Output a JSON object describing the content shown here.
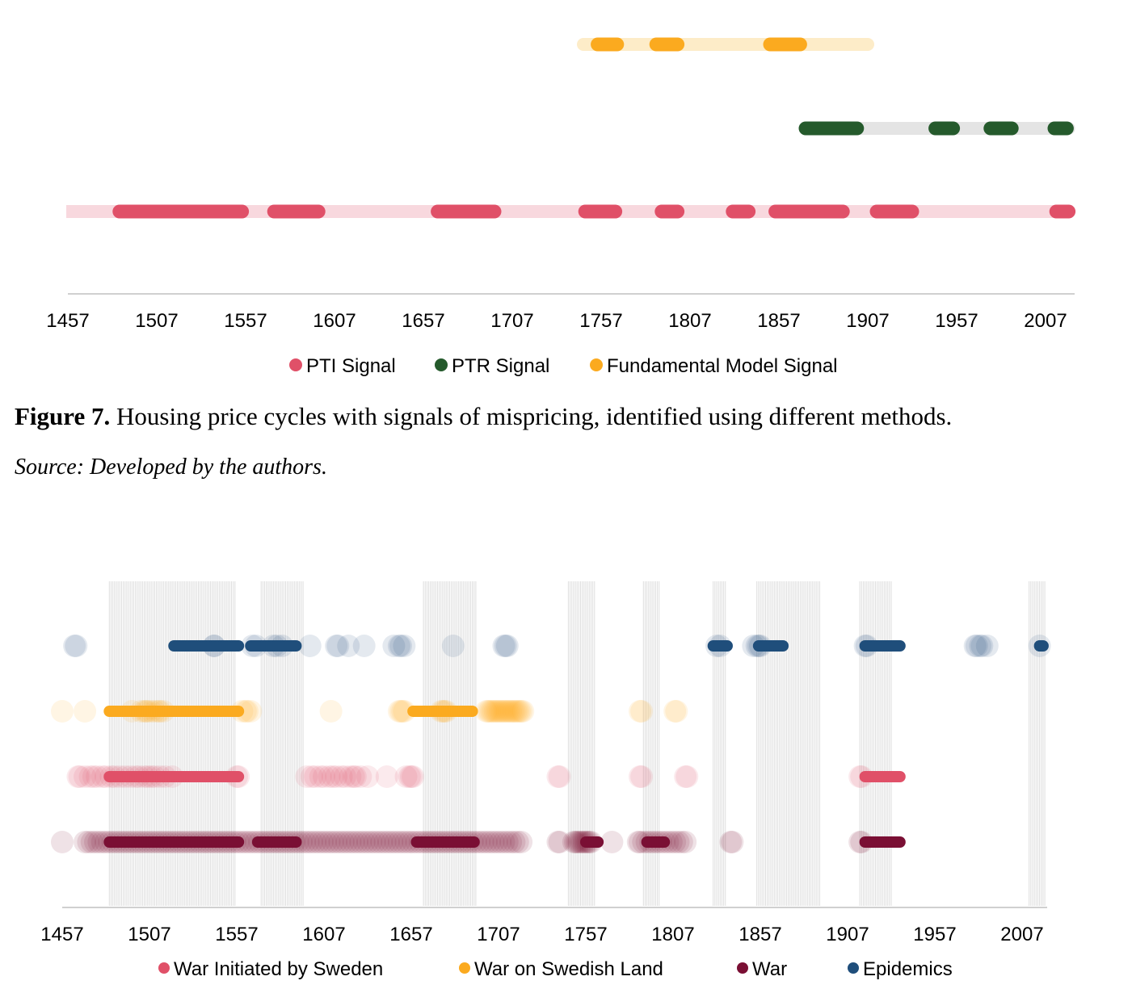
{
  "figure_caption": {
    "label": "Figure 7.",
    "text": " Housing price cycles with signals of mispricing, identified using different methods."
  },
  "source_note": "Source: Developed by the authors.",
  "colors": {
    "pti": "#e05068",
    "pti_track": "#f8d8de",
    "ptr": "#255a2c",
    "ptr_track": "#e4e4e4",
    "fundamental": "#fbaa1f",
    "fundamental_track": "#fdecc8",
    "war_sweden": "#e05068",
    "war_swedish_land": "#fbaa1f",
    "war": "#7a0f34",
    "epidemics": "#1f4e7b"
  },
  "chart_data": [
    {
      "type": "timeline",
      "x_ticks": [
        "1457",
        "1507",
        "1557",
        "1607",
        "1657",
        "1707",
        "1757",
        "1807",
        "1857",
        "1907",
        "1957",
        "2007"
      ],
      "xlim": [
        1457,
        2021
      ],
      "legend_position": "bottom-center",
      "legend": [
        "PTI Signal",
        "PTR Signal",
        "Fundamental Model Signal"
      ],
      "series": [
        {
          "name": "Fundamental Model Signal",
          "track": [
            1747,
            1907
          ],
          "periods": [
            [
              1755,
              1766
            ],
            [
              1788,
              1800
            ],
            [
              1852,
              1869
            ]
          ]
        },
        {
          "name": "PTR Signal",
          "track": [
            1872,
            2020
          ],
          "periods": [
            [
              1872,
              1901
            ],
            [
              1945,
              1955
            ],
            [
              1976,
              1988
            ],
            [
              2012,
              2019
            ]
          ]
        },
        {
          "name": "PTI Signal",
          "track": [
            1457,
            2021
          ],
          "periods": [
            [
              1486,
              1555
            ],
            [
              1573,
              1598
            ],
            [
              1665,
              1697
            ],
            [
              1748,
              1765
            ],
            [
              1791,
              1800
            ],
            [
              1831,
              1840
            ],
            [
              1855,
              1893
            ],
            [
              1912,
              1932
            ],
            [
              2013,
              2020
            ]
          ]
        }
      ]
    },
    {
      "type": "scatter_timeline",
      "x_ticks": [
        "1457",
        "1507",
        "1557",
        "1607",
        "1657",
        "1707",
        "1757",
        "1807",
        "1857",
        "1907",
        "1957",
        "2007"
      ],
      "xlim": [
        1457,
        2021
      ],
      "legend_position": "bottom-center",
      "legend": [
        "War Initiated by Sweden",
        "War on Swedish Land",
        "War",
        "Epidemics"
      ],
      "series": [
        {
          "name": "Epidemics",
          "dots": [
            1464,
            1465,
            1544,
            1544,
            1566,
            1568,
            1578,
            1580,
            1583,
            1599,
            1614,
            1615,
            1621,
            1630,
            1647,
            1650,
            1651,
            1653,
            1681,
            1710,
            1711,
            1712,
            1832,
            1834,
            1853,
            1855,
            1856,
            1857,
            1917,
            1918,
            1980,
            1981,
            1983,
            1984,
            1987,
            2017
          ],
          "bars": [
            [
              1521,
              1558
            ],
            [
              1565,
              1591
            ],
            [
              1830,
              1838
            ],
            [
              1856,
              1870
            ],
            [
              1917,
              1937
            ],
            [
              2017,
              2019
            ]
          ]
        },
        {
          "name": "War on Swedish Land",
          "dots": [
            1457,
            1470,
            1497,
            1502,
            1504,
            1505,
            1506,
            1508,
            1510,
            1512,
            1513,
            1515,
            1560,
            1562,
            1563,
            1565,
            1611,
            1650,
            1651,
            1652,
            1653,
            1674,
            1675,
            1676,
            1677,
            1700,
            1701,
            1702,
            1703,
            1704,
            1705,
            1706,
            1707,
            1708,
            1709,
            1710,
            1711,
            1712,
            1713,
            1714,
            1715,
            1716,
            1717,
            1718,
            1719,
            1720,
            1721,
            1788,
            1789,
            1808,
            1809
          ],
          "bars": [
            [
              1484,
              1558
            ],
            [
              1658,
              1692
            ]
          ]
        },
        {
          "name": "War Initiated by Sweden",
          "dots": [
            1466,
            1467,
            1470,
            1473,
            1475,
            1477,
            1480,
            1482,
            1485,
            1487,
            1490,
            1493,
            1496,
            1499,
            1501,
            1504,
            1506,
            1508,
            1510,
            1513,
            1516,
            1520,
            1557,
            1558,
            1597,
            1600,
            1602,
            1605,
            1607,
            1610,
            1612,
            1614,
            1617,
            1619,
            1622,
            1624,
            1625,
            1628,
            1632,
            1643,
            1654,
            1656,
            1657,
            1658,
            1741,
            1742,
            1788,
            1789,
            1814,
            1815,
            1914,
            1915
          ],
          "bars": [
            [
              1484,
              1558
            ],
            [
              1917,
              1937
            ]
          ]
        },
        {
          "name": "War",
          "dots": [
            1457,
            1470,
            1472,
            1474,
            1476,
            1478,
            1480,
            1482,
            1484,
            1486,
            1488,
            1490,
            1492,
            1494,
            1496,
            1498,
            1500,
            1502,
            1504,
            1506,
            1508,
            1510,
            1512,
            1514,
            1516,
            1518,
            1520,
            1522,
            1524,
            1526,
            1528,
            1530,
            1532,
            1534,
            1536,
            1538,
            1540,
            1542,
            1544,
            1546,
            1548,
            1550,
            1552,
            1554,
            1556,
            1558,
            1560,
            1562,
            1564,
            1566,
            1568,
            1570,
            1572,
            1574,
            1576,
            1578,
            1580,
            1582,
            1584,
            1586,
            1588,
            1590,
            1592,
            1594,
            1596,
            1598,
            1600,
            1602,
            1604,
            1606,
            1608,
            1610,
            1612,
            1614,
            1616,
            1618,
            1620,
            1622,
            1624,
            1626,
            1628,
            1630,
            1632,
            1634,
            1636,
            1638,
            1640,
            1642,
            1644,
            1646,
            1648,
            1650,
            1652,
            1654,
            1656,
            1658,
            1660,
            1662,
            1664,
            1666,
            1668,
            1670,
            1672,
            1674,
            1676,
            1678,
            1680,
            1682,
            1684,
            1686,
            1688,
            1690,
            1692,
            1694,
            1696,
            1698,
            1700,
            1702,
            1704,
            1706,
            1708,
            1710,
            1712,
            1714,
            1716,
            1718,
            1720,
            1741,
            1742,
            1750,
            1751,
            1752,
            1753,
            1754,
            1755,
            1756,
            1757,
            1758,
            1759,
            1760,
            1772,
            1787,
            1788,
            1790,
            1792,
            1794,
            1796,
            1798,
            1800,
            1802,
            1804,
            1806,
            1808,
            1810,
            1812,
            1814,
            1840,
            1841,
            1914,
            1915
          ],
          "bars": [
            [
              1484,
              1558
            ],
            [
              1569,
              1591
            ],
            [
              1660,
              1693
            ],
            [
              1757,
              1764
            ],
            [
              1792,
              1802
            ],
            [
              1917,
              1937
            ]
          ]
        }
      ],
      "gray_bands": [
        [
          1484,
          1556
        ],
        [
          1571,
          1595
        ],
        [
          1664,
          1694
        ],
        [
          1747,
          1762
        ],
        [
          1790,
          1799
        ],
        [
          1830,
          1837
        ],
        [
          1855,
          1891
        ],
        [
          1914,
          1932
        ],
        [
          2011,
          2020
        ]
      ]
    }
  ]
}
